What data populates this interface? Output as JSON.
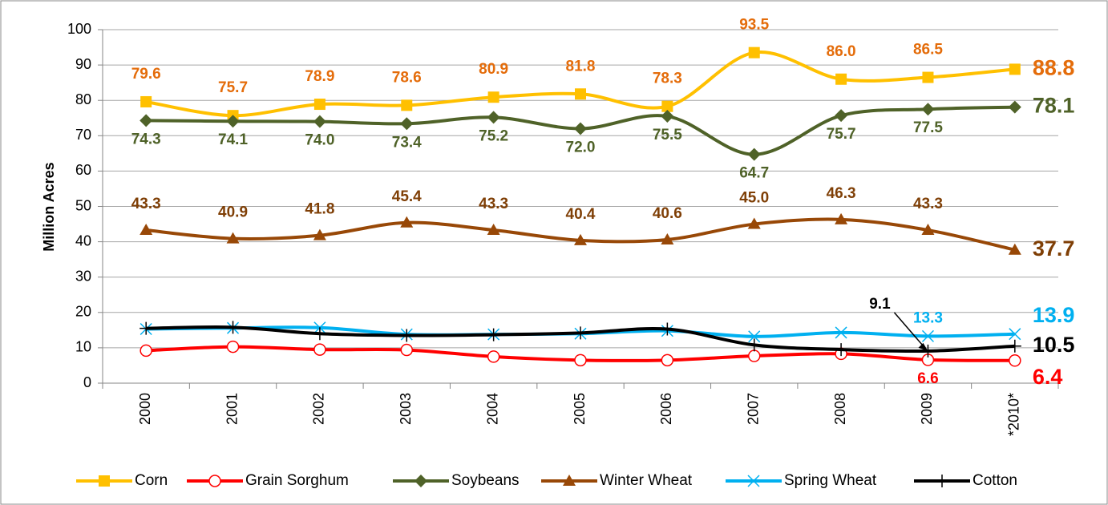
{
  "chart_data": {
    "type": "line",
    "y_axis_label": "Million Acres",
    "categories": [
      "2000",
      "2001",
      "2002",
      "2003",
      "2004",
      "2005",
      "2006",
      "2007",
      "2008",
      "2009",
      "*2010*"
    ],
    "ylim": [
      0,
      100
    ],
    "yticks": [
      0,
      10,
      20,
      30,
      40,
      50,
      60,
      70,
      80,
      90,
      100
    ],
    "grid": true,
    "legend": "bottom",
    "series": [
      {
        "name": "Corn",
        "color": "#FFC000",
        "label_color": "#E46C0A",
        "marker": "square",
        "values": [
          79.6,
          75.7,
          78.9,
          78.6,
          80.9,
          81.8,
          78.3,
          93.5,
          86.0,
          86.5,
          88.8
        ],
        "value_labels": [
          "79.6",
          "75.7",
          "78.9",
          "78.6",
          "80.9",
          "81.8",
          "78.3",
          "93.5",
          "86.0",
          "86.5",
          "88.8"
        ]
      },
      {
        "name": "Grain Sorghum",
        "color": "#FF0000",
        "label_color": "#FF0000",
        "marker": "circle",
        "values": [
          9.2,
          10.3,
          9.5,
          9.4,
          7.5,
          6.5,
          6.5,
          7.7,
          8.3,
          6.6,
          6.4
        ],
        "value_labels": [
          null,
          null,
          null,
          null,
          null,
          null,
          null,
          null,
          null,
          "6.6",
          "6.4"
        ]
      },
      {
        "name": "Soybeans",
        "color": "#4F6228",
        "label_color": "#4F6228",
        "marker": "diamond",
        "values": [
          74.3,
          74.1,
          74.0,
          73.4,
          75.2,
          72.0,
          75.5,
          64.7,
          75.7,
          77.5,
          78.1
        ],
        "value_labels": [
          "74.3",
          "74.1",
          "74.0",
          "73.4",
          "75.2",
          "72.0",
          "75.5",
          "64.7",
          "75.7",
          "77.5",
          "78.1"
        ]
      },
      {
        "name": "Winter Wheat",
        "color": "#984807",
        "label_color": "#7F3F06",
        "marker": "triangle",
        "values": [
          43.3,
          40.9,
          41.8,
          45.4,
          43.3,
          40.4,
          40.6,
          45.0,
          46.3,
          43.3,
          37.7
        ],
        "value_labels": [
          "43.3",
          "40.9",
          "41.8",
          "45.4",
          "43.3",
          "40.4",
          "40.6",
          "45.0",
          "46.3",
          "43.3",
          "37.7"
        ]
      },
      {
        "name": "Spring Wheat",
        "color": "#00B0F0",
        "label_color": "#00B0F0",
        "marker": "x",
        "values": [
          15.3,
          15.6,
          15.7,
          13.8,
          13.8,
          14.0,
          14.8,
          13.2,
          14.3,
          13.3,
          13.9
        ],
        "value_labels": [
          null,
          null,
          null,
          null,
          null,
          null,
          null,
          null,
          null,
          "13.3",
          "13.9"
        ]
      },
      {
        "name": "Cotton",
        "color": "#000000",
        "label_color": "#000000",
        "marker": "plus",
        "values": [
          15.5,
          15.8,
          14.0,
          13.5,
          13.7,
          14.2,
          15.3,
          10.8,
          9.5,
          9.1,
          10.5
        ],
        "value_labels": [
          null,
          null,
          null,
          null,
          null,
          null,
          null,
          null,
          null,
          "9.1",
          "10.5"
        ]
      }
    ]
  }
}
